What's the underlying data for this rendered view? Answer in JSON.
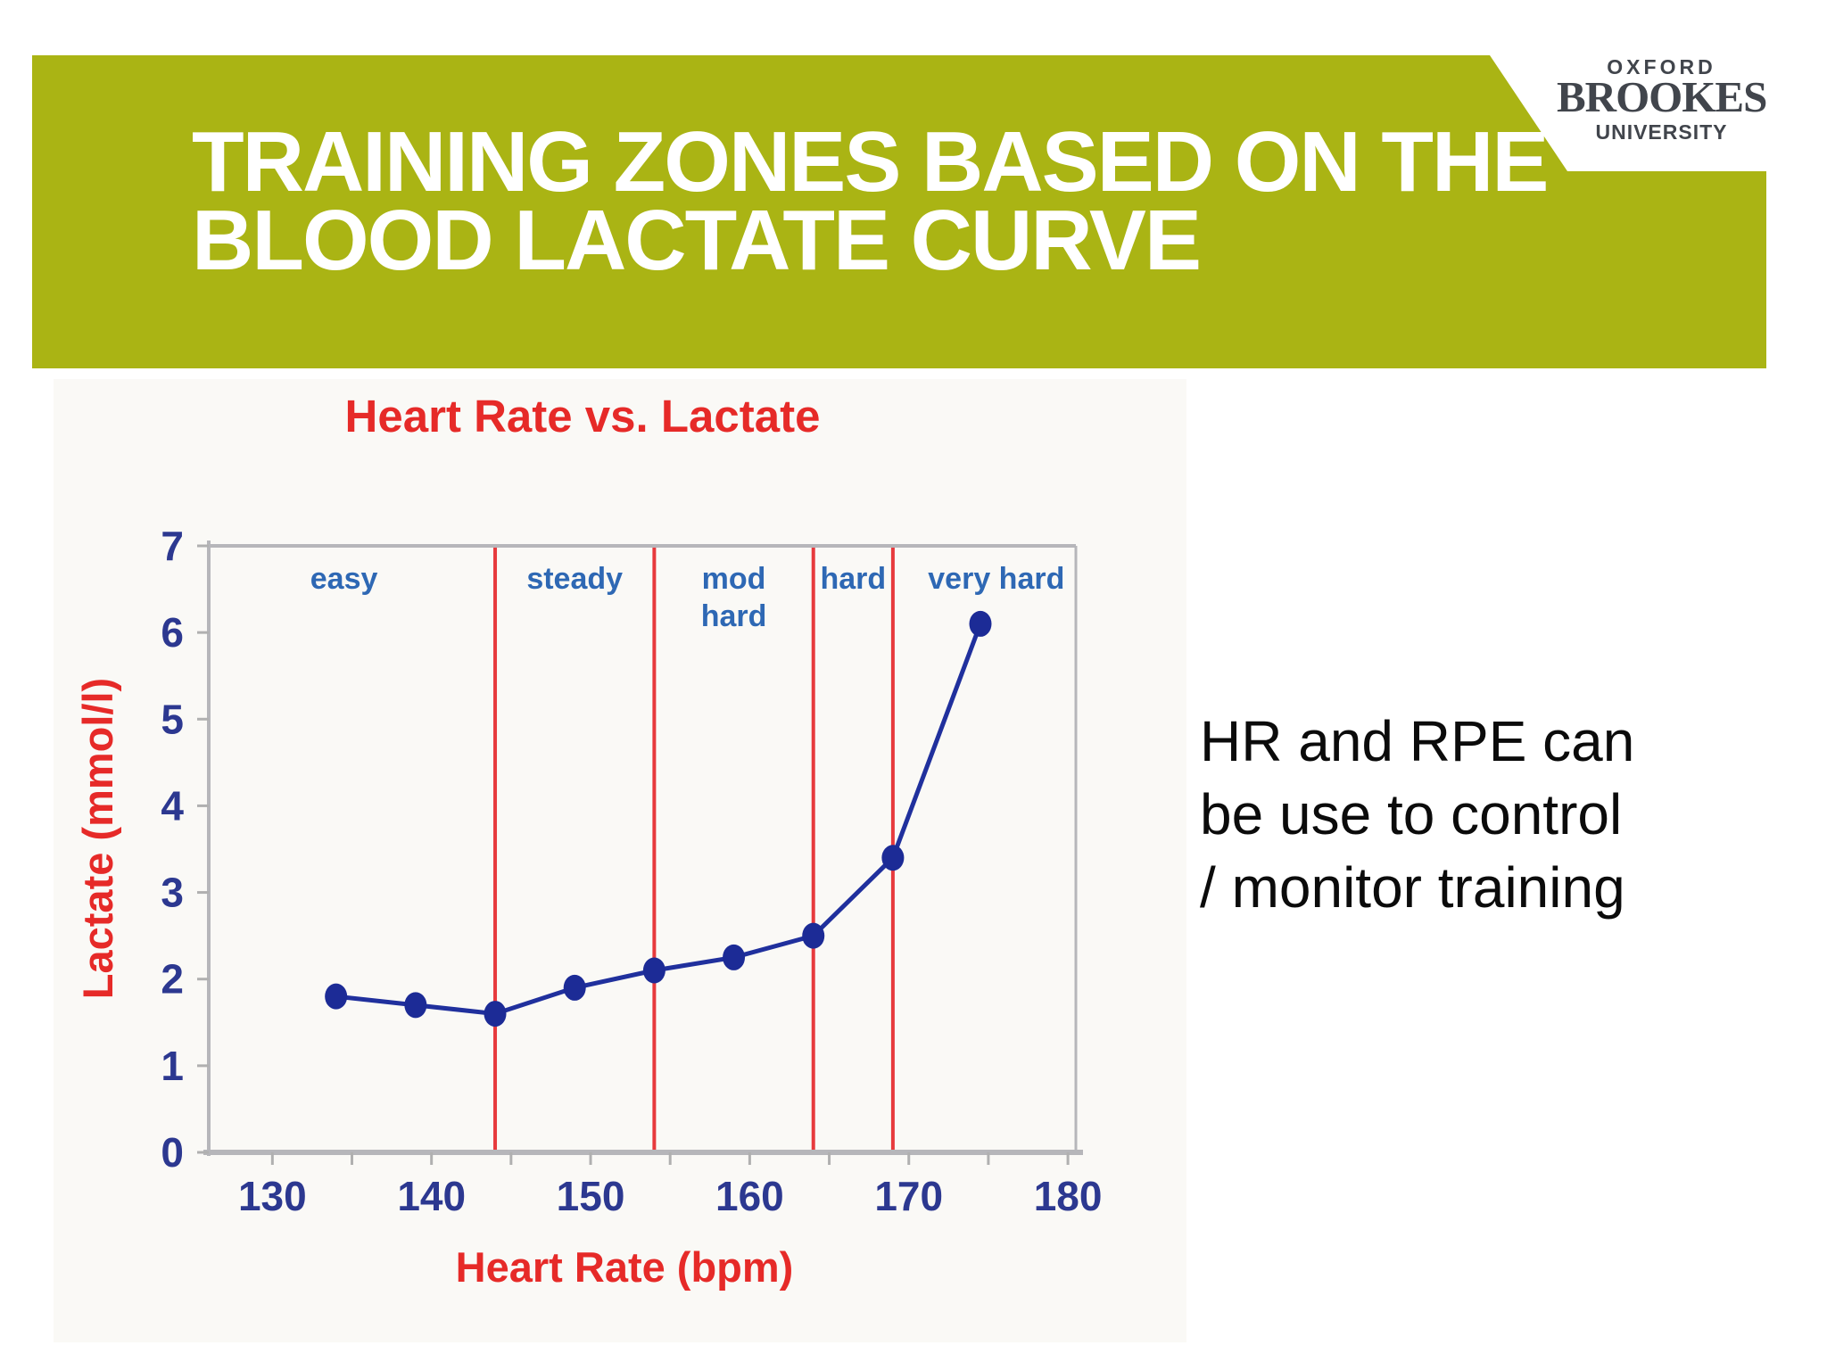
{
  "slide": {
    "title_line1": "TRAINING ZONES BASED ON THE",
    "title_line2": "BLOOD LACTATE CURVE",
    "note_lines": [
      "HR and RPE can",
      "be use to control",
      "/ monitor training"
    ]
  },
  "logo": {
    "line1": "OXFORD",
    "line2": "BROOKES",
    "line3": "UNIVERSITY"
  },
  "colors": {
    "banner_green": "#aab414",
    "title_white": "#ffffff",
    "chart_red": "#e62a28",
    "zone_line_red": "#e73a3d",
    "series_navy": "#20309d",
    "point_navy": "#1c2b96",
    "tick_label_navy": "#2c3890",
    "zone_label_blue": "#2e68b4",
    "axis_gray": "#b6b6ba",
    "tick_gray": "#b0b0b0",
    "logo_gray": "#41454c",
    "note_black": "#0b0b0b"
  },
  "chart_data": {
    "type": "line",
    "title": "Heart Rate vs. Lactate",
    "xlabel": "Heart Rate (bpm)",
    "ylabel": "Lactate (mmol/l)",
    "xlim": [
      126,
      180.5
    ],
    "ylim": [
      0,
      7
    ],
    "xticks": [
      130,
      140,
      150,
      160,
      170,
      180
    ],
    "minor_xtick_step": 5,
    "yticks": [
      0,
      1,
      2,
      3,
      4,
      5,
      6,
      7
    ],
    "grid": "top boundary line only, boxed plot",
    "legend": "none",
    "series": [
      {
        "name": "Lactate",
        "x": [
          134,
          139,
          144,
          149,
          154,
          159,
          164,
          169,
          174.5
        ],
        "y": [
          1.8,
          1.7,
          1.6,
          1.9,
          2.1,
          2.25,
          2.5,
          3.4,
          6.1
        ]
      }
    ],
    "zone_dividers_x": [
      144,
      154,
      164,
      169
    ],
    "zone_labels": [
      {
        "lines": [
          "easy"
        ],
        "x": 134.5
      },
      {
        "lines": [
          "steady"
        ],
        "x": 149
      },
      {
        "lines": [
          "mod",
          "hard"
        ],
        "x": 159
      },
      {
        "lines": [
          "hard"
        ],
        "x": 166.5
      },
      {
        "lines": [
          "very hard"
        ],
        "x": 175.5
      }
    ]
  }
}
